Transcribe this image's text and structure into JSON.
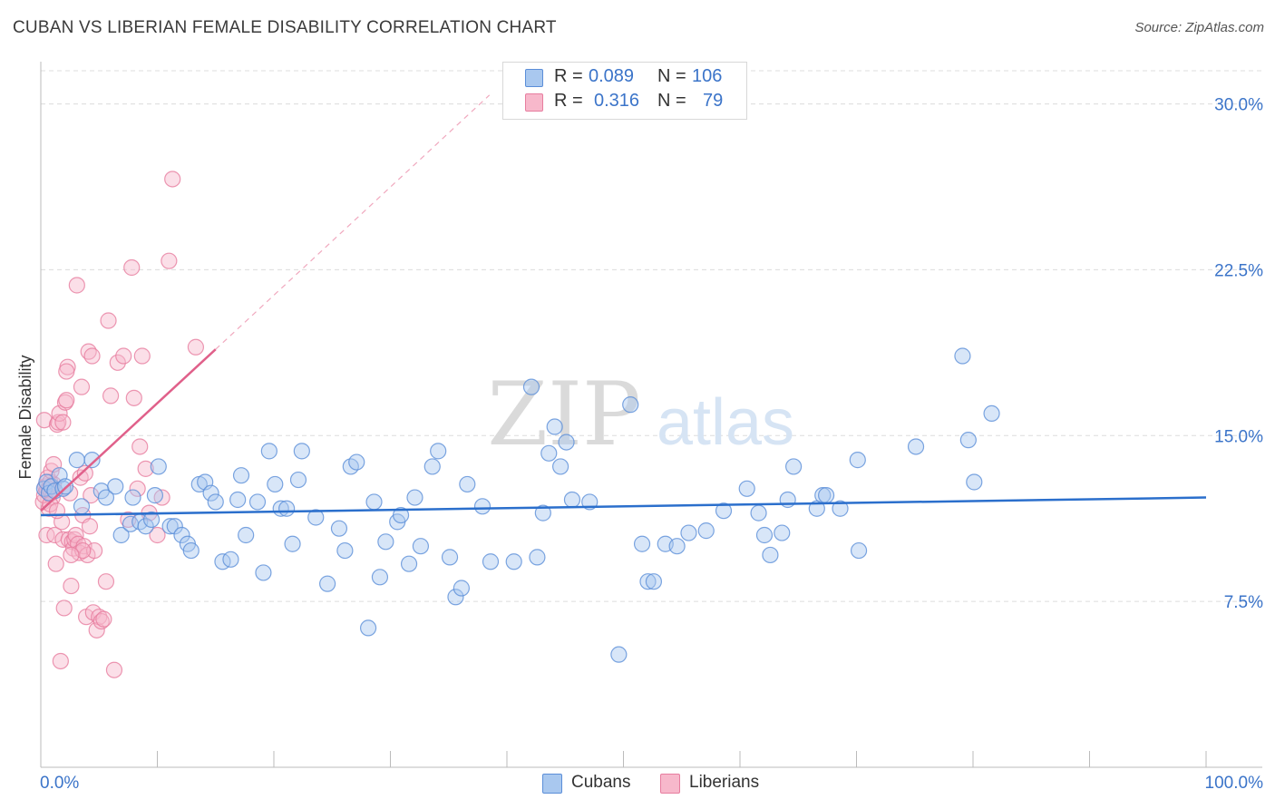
{
  "title": "CUBAN VS LIBERIAN FEMALE DISABILITY CORRELATION CHART",
  "source": "Source: ZipAtlas.com",
  "watermark": {
    "zip": "ZIP",
    "atlas": "atlas"
  },
  "legend": {
    "r_label": "R =",
    "n_label": "N =",
    "rows": [
      {
        "r": "0.089",
        "n": "106"
      },
      {
        "r": "0.316",
        "n": "79"
      }
    ]
  },
  "bottom_legend": [
    "Cubans",
    "Liberians"
  ],
  "colors": {
    "cubans_fill": "#a9c8ef",
    "cubans_stroke": "#5b8ed8",
    "cubans_line": "#2b6fcc",
    "liberians_fill": "#f7b8cb",
    "liberians_stroke": "#e77d9f",
    "liberians_line": "#e0608a",
    "axis_label": "#3b74c9",
    "grid": "#dcdcdc"
  },
  "chart_data": {
    "type": "scatter",
    "ylabel": "Female Disability",
    "x_tick_labels": [
      "0.0%",
      "100.0%"
    ],
    "y_tick_labels": [
      "7.5%",
      "15.0%",
      "22.5%",
      "30.0%"
    ],
    "y_ticks": [
      7.5,
      15.0,
      22.5,
      30.0
    ],
    "xlim": [
      0,
      100
    ],
    "ylim": [
      0,
      31.5
    ],
    "grid": "horizontal dashed",
    "series": [
      {
        "name": "Cubans",
        "trend": {
          "x": [
            0,
            100
          ],
          "y": [
            11.4,
            12.2
          ]
        },
        "points": [
          [
            0.3,
            12.6
          ],
          [
            0.5,
            12.9
          ],
          [
            0.7,
            12.4
          ],
          [
            0.9,
            12.7
          ],
          [
            1.2,
            12.5
          ],
          [
            1.6,
            13.2
          ],
          [
            1.9,
            12.6
          ],
          [
            2.1,
            12.7
          ],
          [
            3.1,
            13.9
          ],
          [
            3.5,
            11.8
          ],
          [
            4.4,
            13.9
          ],
          [
            5.2,
            12.5
          ],
          [
            5.6,
            12.2
          ],
          [
            6.4,
            12.7
          ],
          [
            6.9,
            10.5
          ],
          [
            7.7,
            11.0
          ],
          [
            7.9,
            12.2
          ],
          [
            8.5,
            11.1
          ],
          [
            9.0,
            10.9
          ],
          [
            9.5,
            11.2
          ],
          [
            9.8,
            12.3
          ],
          [
            10.1,
            13.6
          ],
          [
            11.1,
            10.9
          ],
          [
            11.5,
            10.9
          ],
          [
            12.1,
            10.5
          ],
          [
            12.6,
            10.1
          ],
          [
            12.9,
            9.8
          ],
          [
            13.6,
            12.8
          ],
          [
            14.1,
            12.9
          ],
          [
            14.6,
            12.4
          ],
          [
            15.0,
            12.0
          ],
          [
            15.6,
            9.3
          ],
          [
            16.3,
            9.4
          ],
          [
            16.9,
            12.1
          ],
          [
            17.2,
            13.2
          ],
          [
            17.6,
            10.5
          ],
          [
            18.6,
            12.0
          ],
          [
            19.1,
            8.8
          ],
          [
            19.6,
            14.3
          ],
          [
            20.1,
            12.8
          ],
          [
            20.6,
            11.7
          ],
          [
            21.1,
            11.7
          ],
          [
            21.6,
            10.1
          ],
          [
            22.1,
            13.0
          ],
          [
            22.4,
            14.3
          ],
          [
            23.6,
            11.3
          ],
          [
            24.6,
            8.3
          ],
          [
            25.6,
            10.8
          ],
          [
            26.1,
            9.8
          ],
          [
            26.6,
            13.6
          ],
          [
            27.1,
            13.8
          ],
          [
            28.1,
            6.3
          ],
          [
            28.6,
            12.0
          ],
          [
            29.1,
            8.6
          ],
          [
            29.6,
            10.2
          ],
          [
            30.6,
            11.1
          ],
          [
            30.9,
            11.4
          ],
          [
            31.6,
            9.2
          ],
          [
            32.1,
            12.2
          ],
          [
            32.6,
            10.0
          ],
          [
            33.6,
            13.6
          ],
          [
            34.1,
            14.3
          ],
          [
            35.1,
            9.5
          ],
          [
            35.6,
            7.7
          ],
          [
            36.1,
            8.1
          ],
          [
            36.6,
            12.8
          ],
          [
            37.9,
            11.8
          ],
          [
            38.6,
            9.3
          ],
          [
            40.6,
            9.3
          ],
          [
            43.1,
            11.5
          ],
          [
            43.6,
            14.2
          ],
          [
            44.1,
            15.4
          ],
          [
            44.6,
            13.6
          ],
          [
            45.1,
            14.7
          ],
          [
            45.6,
            12.1
          ],
          [
            42.1,
            17.2
          ],
          [
            42.6,
            9.5
          ],
          [
            47.1,
            12.0
          ],
          [
            49.6,
            5.1
          ],
          [
            50.6,
            16.4
          ],
          [
            51.6,
            10.1
          ],
          [
            52.1,
            8.4
          ],
          [
            52.6,
            8.4
          ],
          [
            53.6,
            10.1
          ],
          [
            54.6,
            10.0
          ],
          [
            55.6,
            10.6
          ],
          [
            57.1,
            10.7
          ],
          [
            58.6,
            11.6
          ],
          [
            60.6,
            12.6
          ],
          [
            61.6,
            11.5
          ],
          [
            62.1,
            10.5
          ],
          [
            62.6,
            9.6
          ],
          [
            63.6,
            10.6
          ],
          [
            64.1,
            12.1
          ],
          [
            64.6,
            13.6
          ],
          [
            66.6,
            11.7
          ],
          [
            67.1,
            12.3
          ],
          [
            67.4,
            12.3
          ],
          [
            68.6,
            11.7
          ],
          [
            70.1,
            13.9
          ],
          [
            70.2,
            9.8
          ],
          [
            75.1,
            14.5
          ],
          [
            79.1,
            18.6
          ],
          [
            79.6,
            14.8
          ],
          [
            81.6,
            16.0
          ],
          [
            80.1,
            12.9
          ]
        ]
      },
      {
        "name": "Liberians",
        "trend": {
          "x": [
            0,
            15
          ],
          "y": [
            11.6,
            18.9
          ]
        },
        "trend_dashed": {
          "x": [
            15,
            38.5
          ],
          "y": [
            18.9,
            30.4
          ]
        },
        "points": [
          [
            0.2,
            12.0
          ],
          [
            0.3,
            12.3
          ],
          [
            0.4,
            12.7
          ],
          [
            0.5,
            12.5
          ],
          [
            0.6,
            13.1
          ],
          [
            0.7,
            12.6
          ],
          [
            0.8,
            12.9
          ],
          [
            0.9,
            12.4
          ],
          [
            1.0,
            12.2
          ],
          [
            1.1,
            12.8
          ],
          [
            0.3,
            15.7
          ],
          [
            0.5,
            10.5
          ],
          [
            0.7,
            11.7
          ],
          [
            0.9,
            13.4
          ],
          [
            1.1,
            13.7
          ],
          [
            1.2,
            10.5
          ],
          [
            1.3,
            9.2
          ],
          [
            1.4,
            15.5
          ],
          [
            1.5,
            15.6
          ],
          [
            1.6,
            16.0
          ],
          [
            1.7,
            4.8
          ],
          [
            1.8,
            11.1
          ],
          [
            1.9,
            10.3
          ],
          [
            2.0,
            7.2
          ],
          [
            2.1,
            16.5
          ],
          [
            2.2,
            16.6
          ],
          [
            2.3,
            18.1
          ],
          [
            2.4,
            10.3
          ],
          [
            2.5,
            12.4
          ],
          [
            2.6,
            8.2
          ],
          [
            2.7,
            10.2
          ],
          [
            2.8,
            9.9
          ],
          [
            2.9,
            10.3
          ],
          [
            3.0,
            10.5
          ],
          [
            3.1,
            21.8
          ],
          [
            3.2,
            10.1
          ],
          [
            3.3,
            9.7
          ],
          [
            3.4,
            13.1
          ],
          [
            3.5,
            17.2
          ],
          [
            3.6,
            11.4
          ],
          [
            3.7,
            10.0
          ],
          [
            3.8,
            13.3
          ],
          [
            3.9,
            6.8
          ],
          [
            4.0,
            9.6
          ],
          [
            4.1,
            18.8
          ],
          [
            4.2,
            10.9
          ],
          [
            4.3,
            12.3
          ],
          [
            4.4,
            18.6
          ],
          [
            4.5,
            7.0
          ],
          [
            4.6,
            9.8
          ],
          [
            4.8,
            6.2
          ],
          [
            5.0,
            6.8
          ],
          [
            5.2,
            6.6
          ],
          [
            5.4,
            6.7
          ],
          [
            5.6,
            8.4
          ],
          [
            5.8,
            20.2
          ],
          [
            6.0,
            16.8
          ],
          [
            6.3,
            4.4
          ],
          [
            6.6,
            18.3
          ],
          [
            7.1,
            18.6
          ],
          [
            7.5,
            11.2
          ],
          [
            7.8,
            22.6
          ],
          [
            8.0,
            16.7
          ],
          [
            8.3,
            12.6
          ],
          [
            8.5,
            14.5
          ],
          [
            8.7,
            18.6
          ],
          [
            9.0,
            13.5
          ],
          [
            9.3,
            11.5
          ],
          [
            10.0,
            10.5
          ],
          [
            10.4,
            12.2
          ],
          [
            11.0,
            22.9
          ],
          [
            11.3,
            26.6
          ],
          [
            13.3,
            19.0
          ],
          [
            2.2,
            17.9
          ],
          [
            1.9,
            15.6
          ],
          [
            3.6,
            9.8
          ],
          [
            0.8,
            11.9
          ],
          [
            1.4,
            11.6
          ],
          [
            2.6,
            9.6
          ]
        ]
      }
    ]
  }
}
